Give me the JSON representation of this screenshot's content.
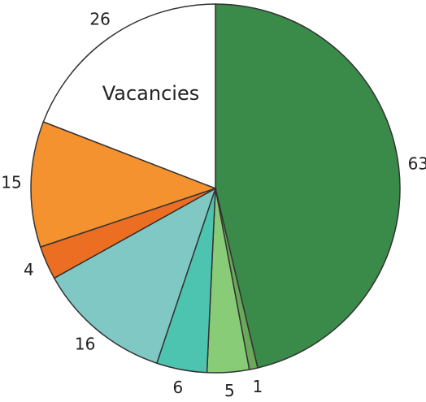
{
  "chart_data": {
    "type": "pie",
    "categories": [
      null,
      null,
      null,
      null,
      null,
      null,
      null,
      "Vacancies"
    ],
    "values": [
      63,
      1,
      5,
      6,
      16,
      4,
      15,
      26
    ],
    "colors": [
      "#3a8a4a",
      "#6aa85a",
      "#88cc78",
      "#4cc4b0",
      "#80c8c4",
      "#ec6e22",
      "#f3922e",
      "#ffffff"
    ]
  }
}
